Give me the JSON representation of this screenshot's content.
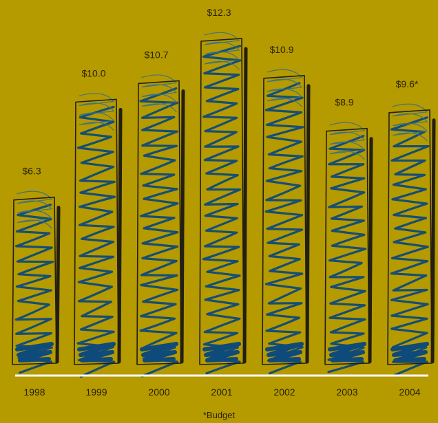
{
  "chart_data": {
    "type": "bar",
    "categories": [
      "1998",
      "1999",
      "2000",
      "2001",
      "2002",
      "2003",
      "2004"
    ],
    "values": [
      6.3,
      10.0,
      10.7,
      12.3,
      10.9,
      8.9,
      9.6
    ],
    "value_labels": [
      "$6.3",
      "$10.0",
      "$10.7",
      "$12.3",
      "$10.9",
      "$8.9",
      "$9.6*"
    ],
    "title": "",
    "xlabel": "",
    "ylabel": "",
    "ylim": [
      0,
      13
    ],
    "grid": false,
    "legend": "none",
    "footnote": "*Budget"
  },
  "colors": {
    "background": "#B59A00",
    "scribble": "#0E4A7A",
    "scribble_light": "#2E6E8E",
    "outline": "#231F12",
    "baseline": "#FFFFFF",
    "text": "#2A2400"
  }
}
